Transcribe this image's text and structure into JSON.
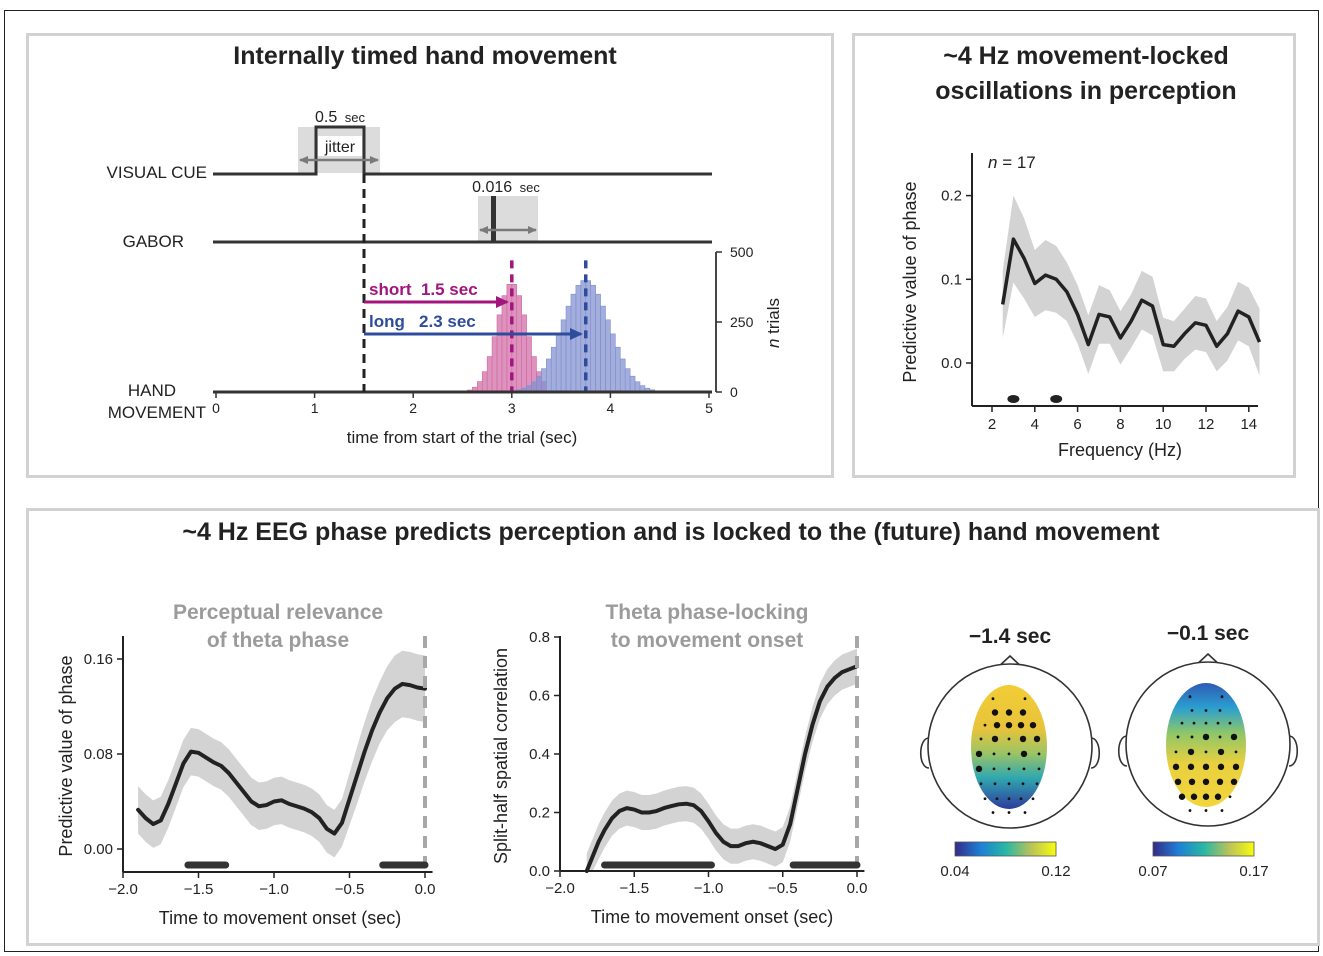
{
  "panel_a": {
    "title": "Internally timed hand movement",
    "rows": {
      "visual_cue": "VISUAL CUE",
      "gabor": "GABOR",
      "hand_1": "HAND",
      "hand_2": "MOVEMENT"
    },
    "cue_duration_num": "0.5",
    "cue_duration_unit": "sec",
    "jitter_label": "jitter",
    "gabor_duration_num": "0.016",
    "gabor_duration_unit": "sec",
    "short_label": "short  1.5 sec",
    "long_label": "long   2.3 sec",
    "colors": {
      "short": "#a3157e",
      "long": "#2f4c9c",
      "short_fill": "#d06aa3",
      "long_fill": "#7f8fd0",
      "jitter_band": "#dcdcdc"
    }
  },
  "panel_b": {
    "title_1": "~4 Hz movement-locked",
    "title_2": "oscillations in perception"
  },
  "panel_c": {
    "title": "~4 Hz EEG phase predicts perception and is locked to the (future) hand movement",
    "c1_title_1": "Perceptual relevance",
    "c1_title_2": "of theta phase",
    "c2_title_1": "Theta phase-locking",
    "c2_title_2": "to movement onset",
    "topo_left_title": "−1.4 sec",
    "topo_right_title": "−0.1 sec",
    "topo_left_cbar": [
      "0.04",
      "0.12"
    ],
    "topo_right_cbar": [
      "0.07",
      "0.17"
    ]
  },
  "chart_data": [
    {
      "type": "bar",
      "id": "trial-histogram",
      "xlabel": "time from start of the trial (sec)",
      "ylabel": "n trials",
      "xlim": [
        0,
        5
      ],
      "ylim": [
        0,
        500
      ],
      "x_ticks": [
        "0",
        "1",
        "2",
        "3",
        "4",
        "5"
      ],
      "y_ticks": [
        "0",
        "250",
        "500"
      ],
      "series": [
        {
          "name": "short",
          "mean": 3.0,
          "sd": 0.15,
          "peak": 390,
          "bin_start": 2.3,
          "bin_end": 3.35,
          "bin_width": 0.05,
          "color": "#d06aa3"
        },
        {
          "name": "long",
          "mean": 3.75,
          "sd": 0.24,
          "peak": 400,
          "bin_start": 2.75,
          "bin_end": 4.5,
          "bin_width": 0.05,
          "color": "#7f8fd0"
        }
      ],
      "markers": {
        "cue_offset": 1.5,
        "short_mean": 3.0,
        "long_mean": 3.75
      }
    },
    {
      "type": "line",
      "id": "phase-vs-frequency",
      "annotation_n": "n",
      "annotation_value": "= 17",
      "xlabel": "Frequency (Hz)",
      "ylabel": "Predictive value of phase",
      "xlim": [
        1,
        15
      ],
      "ylim": [
        -0.05,
        0.25
      ],
      "x_ticks": [
        2,
        4,
        6,
        8,
        10,
        12,
        14
      ],
      "y_ticks": [
        "0.0",
        "0.1",
        "0.2"
      ],
      "x": [
        2.5,
        3,
        3.5,
        4,
        4.5,
        5,
        5.5,
        6,
        6.5,
        7,
        7.5,
        8,
        8.5,
        9,
        9.5,
        10,
        10.5,
        11,
        11.5,
        12,
        12.5,
        13,
        13.5,
        14,
        14.5
      ],
      "y": [
        0.07,
        0.148,
        0.125,
        0.095,
        0.105,
        0.1,
        0.085,
        0.058,
        0.022,
        0.058,
        0.055,
        0.03,
        0.05,
        0.075,
        0.068,
        0.022,
        0.02,
        0.035,
        0.048,
        0.045,
        0.02,
        0.035,
        0.062,
        0.055,
        0.025
      ],
      "ci": [
        0.04,
        0.052,
        0.048,
        0.04,
        0.042,
        0.04,
        0.035,
        0.035,
        0.035,
        0.035,
        0.032,
        0.032,
        0.032,
        0.035,
        0.035,
        0.032,
        0.03,
        0.03,
        0.032,
        0.032,
        0.03,
        0.032,
        0.035,
        0.035,
        0.04
      ],
      "significant_x": [
        3.0,
        5.0
      ]
    },
    {
      "type": "line",
      "id": "perceptual-relevance",
      "xlabel": "Time to movement onset (sec)",
      "ylabel": "Predictive value of phase",
      "xlim": [
        -2.0,
        0.05
      ],
      "ylim": [
        -0.02,
        0.18
      ],
      "x_ticks": [
        "−2.0",
        "−1.5",
        "−1.0",
        "−0.5",
        "0.0"
      ],
      "y_ticks": [
        "0.00",
        "0.08",
        "0.16"
      ],
      "x": [
        -1.9,
        -1.85,
        -1.8,
        -1.75,
        -1.7,
        -1.65,
        -1.6,
        -1.55,
        -1.5,
        -1.45,
        -1.4,
        -1.35,
        -1.3,
        -1.25,
        -1.2,
        -1.15,
        -1.1,
        -1.05,
        -1.0,
        -0.95,
        -0.9,
        -0.85,
        -0.8,
        -0.75,
        -0.7,
        -0.65,
        -0.6,
        -0.55,
        -0.5,
        -0.45,
        -0.4,
        -0.35,
        -0.3,
        -0.25,
        -0.2,
        -0.15,
        -0.1,
        -0.05,
        0.0
      ],
      "y": [
        0.033,
        0.026,
        0.021,
        0.024,
        0.038,
        0.055,
        0.072,
        0.082,
        0.081,
        0.077,
        0.073,
        0.07,
        0.064,
        0.056,
        0.048,
        0.04,
        0.036,
        0.037,
        0.04,
        0.041,
        0.038,
        0.036,
        0.034,
        0.031,
        0.026,
        0.017,
        0.013,
        0.022,
        0.042,
        0.062,
        0.082,
        0.1,
        0.115,
        0.127,
        0.135,
        0.139,
        0.138,
        0.136,
        0.135
      ],
      "ci": [
        0.02,
        0.02,
        0.02,
        0.02,
        0.02,
        0.02,
        0.02,
        0.02,
        0.02,
        0.02,
        0.02,
        0.02,
        0.02,
        0.02,
        0.02,
        0.02,
        0.02,
        0.02,
        0.02,
        0.02,
        0.02,
        0.02,
        0.02,
        0.02,
        0.02,
        0.02,
        0.02,
        0.02,
        0.022,
        0.024,
        0.025,
        0.026,
        0.026,
        0.027,
        0.028,
        0.028,
        0.028,
        0.028,
        0.028
      ],
      "significant_ranges": [
        [
          -1.57,
          -1.32
        ],
        [
          -0.28,
          0.0
        ]
      ],
      "onset_x": 0.0
    },
    {
      "type": "line",
      "id": "theta-phase-locking",
      "xlabel": "Time to movement onset (sec)",
      "ylabel": "Split-half spatial correlation",
      "xlim": [
        -2.0,
        0.05
      ],
      "ylim": [
        0.0,
        0.8
      ],
      "x_ticks": [
        "−2.0",
        "−1.5",
        "−1.0",
        "−0.5",
        "0.0"
      ],
      "y_ticks": [
        "0.0",
        "0.2",
        "0.4",
        "0.6",
        "0.8"
      ],
      "x": [
        -1.82,
        -1.78,
        -1.74,
        -1.7,
        -1.65,
        -1.6,
        -1.55,
        -1.5,
        -1.45,
        -1.4,
        -1.35,
        -1.3,
        -1.25,
        -1.2,
        -1.15,
        -1.1,
        -1.05,
        -1.0,
        -0.95,
        -0.9,
        -0.85,
        -0.8,
        -0.75,
        -0.7,
        -0.65,
        -0.6,
        -0.55,
        -0.5,
        -0.45,
        -0.4,
        -0.35,
        -0.3,
        -0.25,
        -0.2,
        -0.15,
        -0.1,
        -0.05,
        0.0
      ],
      "y": [
        0.0,
        0.05,
        0.1,
        0.14,
        0.18,
        0.205,
        0.215,
        0.21,
        0.2,
        0.2,
        0.205,
        0.215,
        0.222,
        0.228,
        0.23,
        0.225,
        0.205,
        0.17,
        0.13,
        0.1,
        0.085,
        0.085,
        0.095,
        0.1,
        0.095,
        0.085,
        0.075,
        0.09,
        0.16,
        0.28,
        0.4,
        0.5,
        0.58,
        0.63,
        0.66,
        0.68,
        0.69,
        0.7
      ],
      "ci": [
        0.06,
        0.06,
        0.06,
        0.06,
        0.06,
        0.06,
        0.06,
        0.06,
        0.06,
        0.06,
        0.06,
        0.06,
        0.06,
        0.06,
        0.06,
        0.06,
        0.06,
        0.06,
        0.06,
        0.06,
        0.06,
        0.06,
        0.06,
        0.06,
        0.06,
        0.06,
        0.06,
        0.06,
        0.06,
        0.06,
        0.06,
        0.06,
        0.06,
        0.06,
        0.06,
        0.06,
        0.06,
        0.06
      ],
      "significant_ranges": [
        [
          -1.7,
          -0.98
        ],
        [
          -0.43,
          0.0
        ]
      ],
      "onset_x": 0.0
    }
  ]
}
